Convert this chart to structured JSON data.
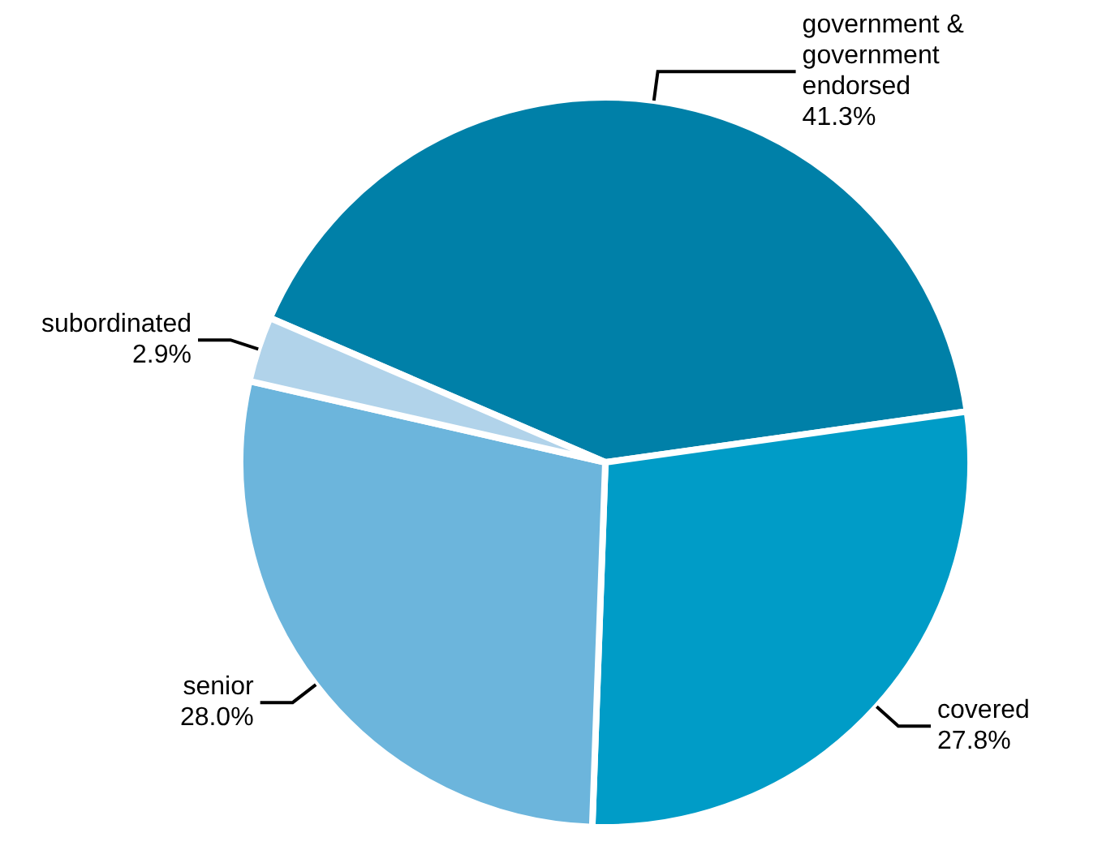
{
  "chart_data": {
    "type": "pie",
    "categories": [
      "government & government endorsed",
      "covered",
      "senior",
      "subordinated"
    ],
    "values": [
      41.3,
      27.8,
      28.0,
      2.9
    ],
    "value_labels": [
      "41.3%",
      "27.8%",
      "28.0%",
      "2.9%"
    ],
    "colors": [
      "#0080a8",
      "#009cc7",
      "#6cb5dc",
      "#b1d3ea"
    ]
  }
}
